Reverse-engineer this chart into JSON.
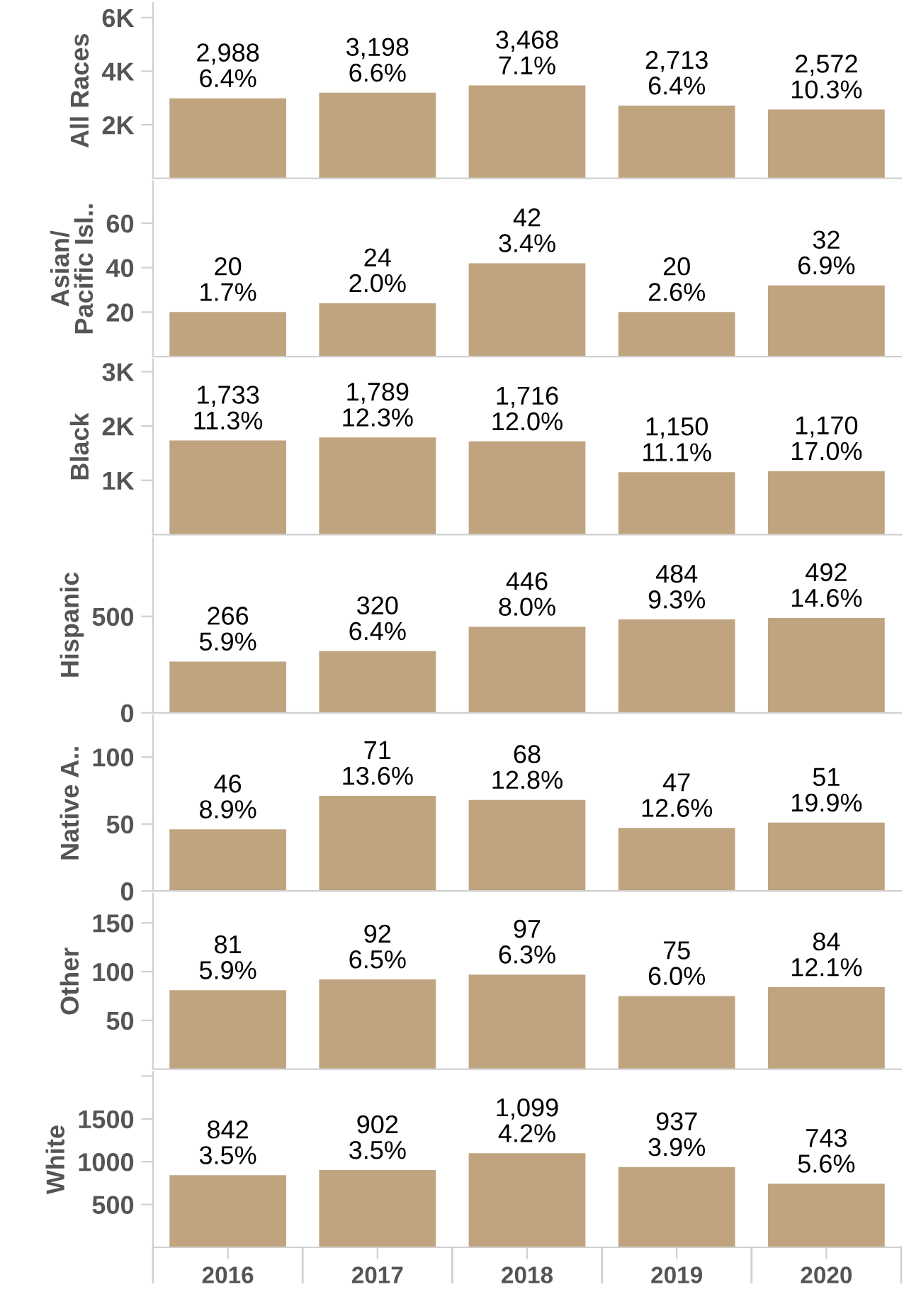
{
  "chart_data": [
    {
      "type": "bar",
      "ylabel": "All Races",
      "categories": [
        "2016",
        "2017",
        "2018",
        "2019",
        "2020"
      ],
      "values": [
        2988,
        3198,
        3468,
        2713,
        2572
      ],
      "value_labels": [
        "2,988\n6.4%",
        "3,198\n6.6%",
        "3,468\n7.1%",
        "2,713\n6.4%",
        "2,572\n10.3%"
      ],
      "color": "#c0a47f",
      "ylim": [
        0,
        6550
      ],
      "yticks": [
        {
          "value": 2000,
          "label": "2K"
        },
        {
          "value": 4000,
          "label": "4K"
        },
        {
          "value": 6000,
          "label": "6K"
        }
      ],
      "tick_labels": "y",
      "grid": false,
      "legend": false
    },
    {
      "type": "bar",
      "ylabel": "Asian/\nPacific Isl..",
      "categories": [
        "2016",
        "2017",
        "2018",
        "2019",
        "2020"
      ],
      "values": [
        20,
        24,
        42,
        20,
        32
      ],
      "value_labels": [
        "20\n1.7%",
        "24\n2.0%",
        "42\n3.4%",
        "20\n2.6%",
        "32\n6.9%"
      ],
      "color": "#c0a47f",
      "ylim": [
        0,
        79
      ],
      "yticks": [
        20,
        40,
        60
      ],
      "tick_labels": "y",
      "grid": false,
      "legend": false
    },
    {
      "type": "bar",
      "ylabel": "Black",
      "categories": [
        "2016",
        "2017",
        "2018",
        "2019",
        "2020"
      ],
      "values": [
        1733,
        1789,
        1716,
        1150,
        1170
      ],
      "value_labels": [
        "1,733\n11.3%",
        "1,789\n12.3%",
        "1,716\n12.0%",
        "1,150\n11.1%",
        "1,170\n17.0%"
      ],
      "color": "#c0a47f",
      "ylim": [
        0,
        3230
      ],
      "yticks": [
        {
          "value": 1000,
          "label": "1K"
        },
        {
          "value": 2000,
          "label": "2K"
        },
        {
          "value": 3000,
          "label": "3K"
        }
      ],
      "tick_labels": "y",
      "grid": false,
      "legend": false
    },
    {
      "type": "bar",
      "ylabel": "Hispanic",
      "categories": [
        "2016",
        "2017",
        "2018",
        "2019",
        "2020"
      ],
      "values": [
        266,
        320,
        446,
        484,
        492
      ],
      "value_labels": [
        "266\n5.9%",
        "320\n6.4%",
        "446\n8.0%",
        "484\n9.3%",
        "492\n14.6%"
      ],
      "color": "#c0a47f",
      "ylim": [
        0,
        910
      ],
      "yticks": [
        0,
        500
      ],
      "tick_labels": "y",
      "grid": false,
      "legend": false
    },
    {
      "type": "bar",
      "ylabel": "Native A..",
      "categories": [
        "2016",
        "2017",
        "2018",
        "2019",
        "2020"
      ],
      "values": [
        46,
        71,
        68,
        47,
        51
      ],
      "value_labels": [
        "46\n8.9%",
        "71\n13.6%",
        "68\n12.8%",
        "47\n12.6%",
        "51\n19.9%"
      ],
      "color": "#c0a47f",
      "ylim": [
        0,
        131
      ],
      "yticks": [
        0,
        50,
        100
      ],
      "tick_labels": "y",
      "grid": false,
      "legend": false
    },
    {
      "type": "bar",
      "ylabel": "Other",
      "categories": [
        "2016",
        "2017",
        "2018",
        "2019",
        "2020"
      ],
      "values": [
        81,
        92,
        97,
        75,
        84
      ],
      "value_labels": [
        "81\n5.9%",
        "92\n6.5%",
        "97\n6.3%",
        "75\n6.0%",
        "84\n12.1%"
      ],
      "color": "#c0a47f",
      "ylim": [
        0,
        180
      ],
      "yticks": [
        50,
        100,
        150
      ],
      "tick_labels": "y",
      "grid": false,
      "legend": false
    },
    {
      "type": "bar",
      "ylabel": "White",
      "categories": [
        "2016",
        "2017",
        "2018",
        "2019",
        "2020"
      ],
      "values": [
        842,
        902,
        1099,
        937,
        743
      ],
      "value_labels": [
        "842\n3.5%",
        "902\n3.5%",
        "1,099\n4.2%",
        "937\n3.9%",
        "743\n5.6%"
      ],
      "color": "#c0a47f",
      "ylim": [
        0,
        2050
      ],
      "yticks": [
        500,
        1000,
        1500,
        {
          "value": 2000,
          "label": null
        }
      ],
      "grid": false,
      "legend": false
    }
  ]
}
